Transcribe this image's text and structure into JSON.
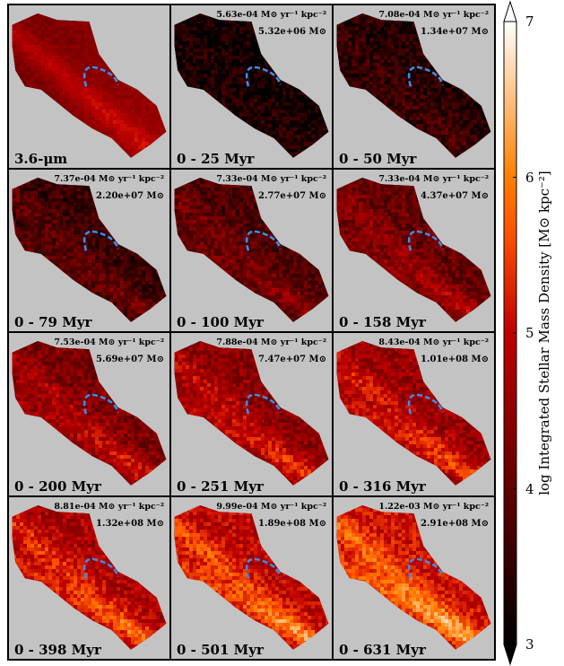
{
  "chart_data": {
    "type": "heatmap",
    "description_grid": "4x3",
    "panels": [
      {
        "age_label": "3.6-μm",
        "sfr": "",
        "mass": "",
        "intensity": 0.5,
        "bg_base": 0.3
      },
      {
        "age_label": "0 - 25 Myr",
        "sfr": "5.63e-04",
        "mass": "5.32e+06",
        "intensity": 0.1,
        "bg_base": 0.05
      },
      {
        "age_label": "0 - 50 Myr",
        "sfr": "7.08e-04",
        "mass": "1.34e+07",
        "intensity": 0.18,
        "bg_base": 0.1
      },
      {
        "age_label": "0 - 79 Myr",
        "sfr": "7.37e-04",
        "mass": "2.20e+07",
        "intensity": 0.3,
        "bg_base": 0.15
      },
      {
        "age_label": "0 - 100 Myr",
        "sfr": "7.33e-04",
        "mass": "2.77e+07",
        "intensity": 0.36,
        "bg_base": 0.2
      },
      {
        "age_label": "0 - 158 Myr",
        "sfr": "7.33e-04",
        "mass": "4.37e+07",
        "intensity": 0.44,
        "bg_base": 0.26
      },
      {
        "age_label": "0 - 200 Myr",
        "sfr": "7.53e-04",
        "mass": "5.69e+07",
        "intensity": 0.52,
        "bg_base": 0.32
      },
      {
        "age_label": "0 - 251 Myr",
        "sfr": "7.88e-04",
        "mass": "7.47e+07",
        "intensity": 0.58,
        "bg_base": 0.36
      },
      {
        "age_label": "0 - 316 Myr",
        "sfr": "8.43e-04",
        "mass": "1.01e+08",
        "intensity": 0.62,
        "bg_base": 0.4
      },
      {
        "age_label": "0 - 398 Myr",
        "sfr": "8.81e-04",
        "mass": "1.32e+08",
        "intensity": 0.7,
        "bg_base": 0.44
      },
      {
        "age_label": "0 - 501 Myr",
        "sfr": "9.99e-04",
        "mass": "1.89e+08",
        "intensity": 0.76,
        "bg_base": 0.48
      },
      {
        "age_label": "0 - 631 Myr",
        "sfr": "1.22e-03",
        "mass": "2.91e+08",
        "intensity": 0.82,
        "bg_base": 0.52
      }
    ],
    "sfr_unit": "M⊙ yr⁻¹ kpc⁻²",
    "mass_unit": "M⊙",
    "colorbar": {
      "label": "log Integrated Stellar Mass Density [M⊙ kpc⁻²]",
      "min": 3,
      "max": 7,
      "ticks": [
        3,
        4,
        5,
        6,
        7
      ],
      "colormap": "gist_heat",
      "extend": "both"
    },
    "region_marker_color": "#3a8ee8",
    "missing_data_color": "#c3c3c3"
  }
}
